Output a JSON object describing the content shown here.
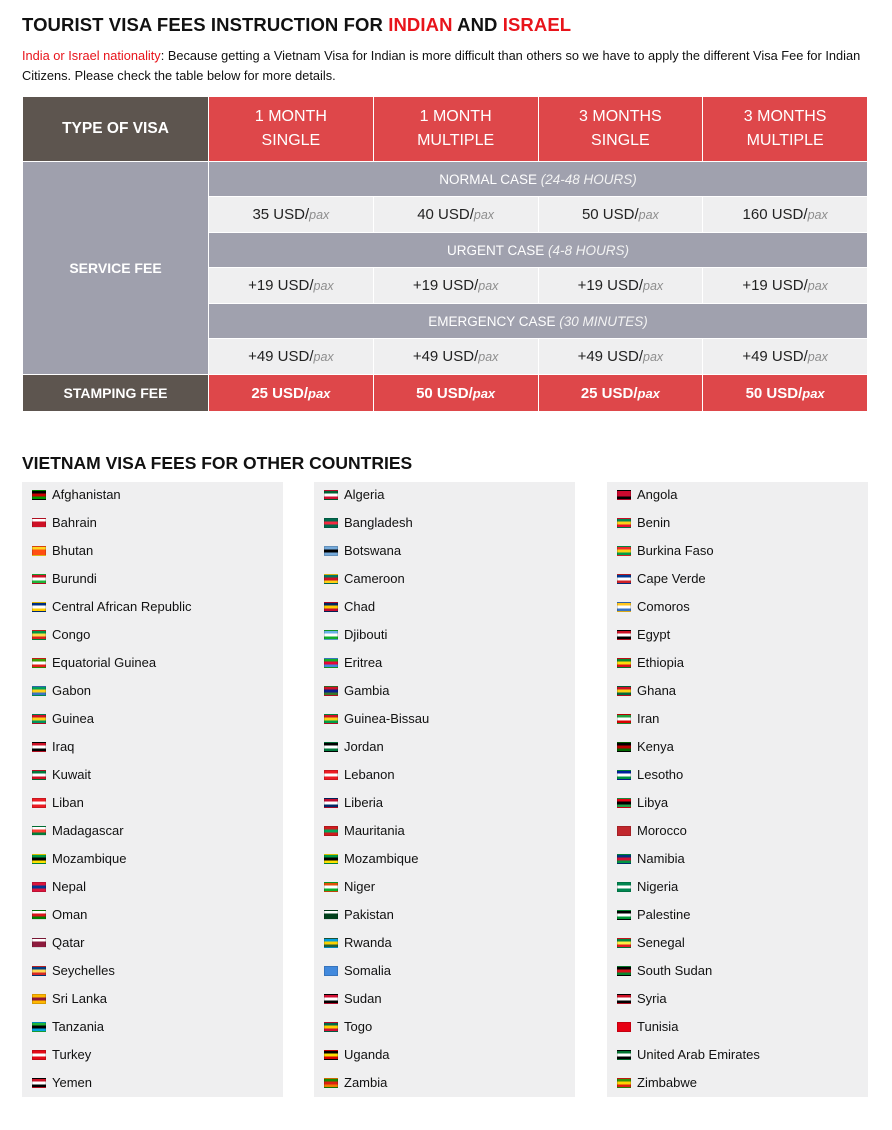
{
  "title": {
    "pre": "TOURIST VISA FEES INSTRUCTION FOR ",
    "india": "INDIAN",
    "mid": " AND ",
    "israel": "ISRAEL"
  },
  "intro": {
    "label": "India or Israel nationality",
    "text": ": Because getting a Vietnam Visa for Indian is more difficult than others so we have to apply the different Visa Fee for Indian Citizens. Please check the table below for more details."
  },
  "table": {
    "type_label": "TYPE OF VISA",
    "headers": [
      {
        "l1": "1 MONTH",
        "l2": "SINGLE"
      },
      {
        "l1": "1 MONTH",
        "l2": "MULTIPLE"
      },
      {
        "l1": "3 MONTHS",
        "l2": "SINGLE"
      },
      {
        "l1": "3 MONTHS",
        "l2": "MULTIPLE"
      }
    ],
    "service_label": "SERVICE FEE",
    "unit": "/",
    "pax": "pax",
    "sections": [
      {
        "name": "NORMAL CASE",
        "time": "(24-48 HOURS)",
        "values": [
          "35 USD",
          "40 USD",
          "50 USD",
          "160 USD"
        ]
      },
      {
        "name": "URGENT CASE",
        "time": "(4-8 HOURS)",
        "values": [
          "+19 USD",
          "+19 USD",
          "+19 USD",
          "+19 USD"
        ]
      },
      {
        "name": "EMERGENCY CASE",
        "time": "(30 MINUTES)",
        "values": [
          "+49 USD",
          "+49 USD",
          "+49 USD",
          "+49 USD"
        ]
      }
    ],
    "stamping_label": "STAMPING FEE",
    "stamping_values": [
      "25 USD",
      "50 USD",
      "25 USD",
      "50 USD"
    ]
  },
  "other_title": "VIETNAM VISA FEES FOR OTHER COUNTRIES",
  "columns": [
    [
      {
        "name": "Afghanistan",
        "flag": [
          "#000",
          "#c00",
          "#090"
        ]
      },
      {
        "name": "Bahrain",
        "flag": [
          "#fff",
          "#ce1126",
          "#ce1126"
        ]
      },
      {
        "name": "Bhutan",
        "flag": [
          "#ffd520",
          "#ff4e12",
          "#ff4e12"
        ]
      },
      {
        "name": "Burundi",
        "flag": [
          "#ce1126",
          "#fff",
          "#1eb53a"
        ]
      },
      {
        "name": "Central African Republic",
        "flag": [
          "#003082",
          "#fff",
          "#ffce00"
        ]
      },
      {
        "name": "Congo",
        "flag": [
          "#009543",
          "#fbde4a",
          "#dc241f"
        ]
      },
      {
        "name": "Equatorial Guinea",
        "flag": [
          "#3e9a00",
          "#fff",
          "#e32118"
        ]
      },
      {
        "name": "Gabon",
        "flag": [
          "#009e60",
          "#fcd116",
          "#3a75c4"
        ]
      },
      {
        "name": "Guinea",
        "flag": [
          "#ce1126",
          "#fcd116",
          "#009460"
        ]
      },
      {
        "name": "Iraq",
        "flag": [
          "#ce1126",
          "#fff",
          "#000"
        ]
      },
      {
        "name": "Kuwait",
        "flag": [
          "#007a3d",
          "#fff",
          "#ce1126"
        ]
      },
      {
        "name": "Liban",
        "flag": [
          "#ed1c24",
          "#fff",
          "#ed1c24"
        ]
      },
      {
        "name": "Madagascar",
        "flag": [
          "#fff",
          "#fc3d32",
          "#007e3a"
        ]
      },
      {
        "name": "Mozambique",
        "flag": [
          "#009a44",
          "#000",
          "#fce100"
        ]
      },
      {
        "name": "Nepal",
        "flag": [
          "#dc143c",
          "#003893",
          "#dc143c"
        ]
      },
      {
        "name": "Oman",
        "flag": [
          "#fff",
          "#db161b",
          "#008000"
        ]
      },
      {
        "name": "Qatar",
        "flag": [
          "#fff",
          "#8d1b3d",
          "#8d1b3d"
        ]
      },
      {
        "name": "Seychelles",
        "flag": [
          "#003f87",
          "#fcd856",
          "#d62828"
        ]
      },
      {
        "name": "Sri Lanka",
        "flag": [
          "#ffb700",
          "#8d153a",
          "#ffb700"
        ]
      },
      {
        "name": "Tanzania",
        "flag": [
          "#1eb53a",
          "#000",
          "#00a3dd"
        ]
      },
      {
        "name": "Turkey",
        "flag": [
          "#e30a17",
          "#fff",
          "#e30a17"
        ]
      },
      {
        "name": "Yemen",
        "flag": [
          "#ce1126",
          "#fff",
          "#000"
        ]
      }
    ],
    [
      {
        "name": "Algeria",
        "flag": [
          "#006233",
          "#fff",
          "#d21034"
        ]
      },
      {
        "name": "Bangladesh",
        "flag": [
          "#006a4e",
          "#f42a41",
          "#006a4e"
        ]
      },
      {
        "name": "Botswana",
        "flag": [
          "#75aadb",
          "#000",
          "#75aadb"
        ]
      },
      {
        "name": "Cameroon",
        "flag": [
          "#007a5e",
          "#ce1126",
          "#fcd116"
        ]
      },
      {
        "name": "Chad",
        "flag": [
          "#002664",
          "#fecb00",
          "#c60c30"
        ]
      },
      {
        "name": "Djibouti",
        "flag": [
          "#6ab2e7",
          "#fff",
          "#12ad2b"
        ]
      },
      {
        "name": "Eritrea",
        "flag": [
          "#12ad2b",
          "#ea0437",
          "#4189dd"
        ]
      },
      {
        "name": "Gambia",
        "flag": [
          "#ce1126",
          "#0c1c8c",
          "#3a7728"
        ]
      },
      {
        "name": "Guinea-Bissau",
        "flag": [
          "#ce1126",
          "#fcd116",
          "#009e49"
        ]
      },
      {
        "name": "Jordan",
        "flag": [
          "#000",
          "#fff",
          "#007a3d"
        ]
      },
      {
        "name": "Lebanon",
        "flag": [
          "#ed1c24",
          "#fff",
          "#ed1c24"
        ]
      },
      {
        "name": "Liberia",
        "flag": [
          "#bf0a30",
          "#fff",
          "#002868"
        ]
      },
      {
        "name": "Mauritania",
        "flag": [
          "#d01c1f",
          "#00a95c",
          "#d01c1f"
        ]
      },
      {
        "name": "Mozambique",
        "flag": [
          "#009a44",
          "#000",
          "#fce100"
        ]
      },
      {
        "name": "Niger",
        "flag": [
          "#e05206",
          "#fff",
          "#0db02b"
        ]
      },
      {
        "name": "Pakistan",
        "flag": [
          "#fff",
          "#01411c",
          "#01411c"
        ]
      },
      {
        "name": "Rwanda",
        "flag": [
          "#00a1de",
          "#fad201",
          "#20603d"
        ]
      },
      {
        "name": "Somalia",
        "flag": [
          "#4189dd",
          "#4189dd",
          "#4189dd"
        ]
      },
      {
        "name": "Sudan",
        "flag": [
          "#d21034",
          "#fff",
          "#000"
        ]
      },
      {
        "name": "Togo",
        "flag": [
          "#006a4e",
          "#ffce00",
          "#d21034"
        ]
      },
      {
        "name": "Uganda",
        "flag": [
          "#000",
          "#fcdc04",
          "#d90000"
        ]
      },
      {
        "name": "Zambia",
        "flag": [
          "#198a00",
          "#de2010",
          "#ef7d00"
        ]
      }
    ],
    [
      {
        "name": "Angola",
        "flag": [
          "#cc092f",
          "#cc092f",
          "#000"
        ]
      },
      {
        "name": "Benin",
        "flag": [
          "#008751",
          "#fcd116",
          "#e8112d"
        ]
      },
      {
        "name": "Burkina Faso",
        "flag": [
          "#ef2b2d",
          "#fcd116",
          "#009e49"
        ]
      },
      {
        "name": "Cape Verde",
        "flag": [
          "#003893",
          "#fff",
          "#cf2027"
        ]
      },
      {
        "name": "Comoros",
        "flag": [
          "#ffc61e",
          "#fff",
          "#3a75c4"
        ]
      },
      {
        "name": "Egypt",
        "flag": [
          "#ce1126",
          "#fff",
          "#000"
        ]
      },
      {
        "name": "Ethiopia",
        "flag": [
          "#078930",
          "#fcdd09",
          "#da121a"
        ]
      },
      {
        "name": "Ghana",
        "flag": [
          "#ce1126",
          "#fcd116",
          "#006b3f"
        ]
      },
      {
        "name": "Iran",
        "flag": [
          "#239f40",
          "#fff",
          "#da0000"
        ]
      },
      {
        "name": "Kenya",
        "flag": [
          "#000",
          "#bb0000",
          "#006600"
        ]
      },
      {
        "name": "Lesotho",
        "flag": [
          "#00209f",
          "#fff",
          "#009543"
        ]
      },
      {
        "name": "Libya",
        "flag": [
          "#e70013",
          "#000",
          "#239e46"
        ]
      },
      {
        "name": "Morocco",
        "flag": [
          "#c1272d",
          "#c1272d",
          "#c1272d"
        ]
      },
      {
        "name": "Namibia",
        "flag": [
          "#003580",
          "#d21034",
          "#009543"
        ]
      },
      {
        "name": "Nigeria",
        "flag": [
          "#008751",
          "#fff",
          "#008751"
        ]
      },
      {
        "name": "Palestine",
        "flag": [
          "#000",
          "#fff",
          "#009736"
        ]
      },
      {
        "name": "Senegal",
        "flag": [
          "#00853f",
          "#fdef42",
          "#e31b23"
        ]
      },
      {
        "name": "South Sudan",
        "flag": [
          "#000",
          "#da121a",
          "#078930"
        ]
      },
      {
        "name": "Syria",
        "flag": [
          "#ce1126",
          "#fff",
          "#000"
        ]
      },
      {
        "name": "Tunisia",
        "flag": [
          "#e70013",
          "#e70013",
          "#e70013"
        ]
      },
      {
        "name": "United Arab Emirates",
        "flag": [
          "#00732f",
          "#fff",
          "#000"
        ]
      },
      {
        "name": "Zimbabwe",
        "flag": [
          "#319208",
          "#ffd200",
          "#de2010"
        ]
      }
    ]
  ]
}
